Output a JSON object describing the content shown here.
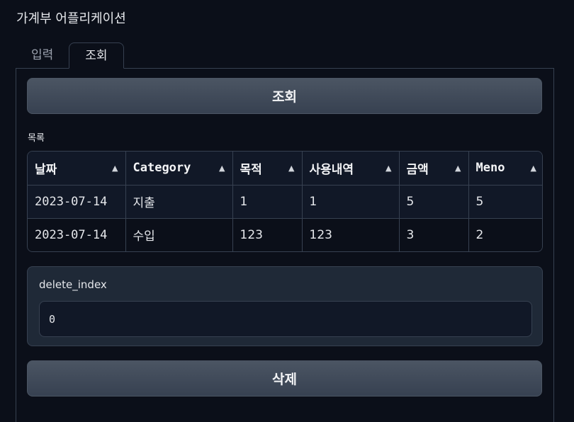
{
  "app": {
    "title": "가계부 어플리케이션"
  },
  "tabs": [
    {
      "label": "입력",
      "active": false
    },
    {
      "label": "조회",
      "active": true
    }
  ],
  "query_button": {
    "label": "조회"
  },
  "list": {
    "label": "목록",
    "columns": [
      "날짜",
      "Category",
      "목적",
      "사용내역",
      "금액",
      "Meno"
    ],
    "rows": [
      [
        "2023-07-14",
        "지출",
        "1",
        "1",
        "5",
        "5"
      ],
      [
        "2023-07-14",
        "수입",
        "123",
        "123",
        "3",
        "2"
      ]
    ]
  },
  "delete_index": {
    "label": "delete_index",
    "value": "0"
  },
  "delete_button": {
    "label": "삭제"
  },
  "icons": {
    "sort": "sort-up-icon"
  }
}
